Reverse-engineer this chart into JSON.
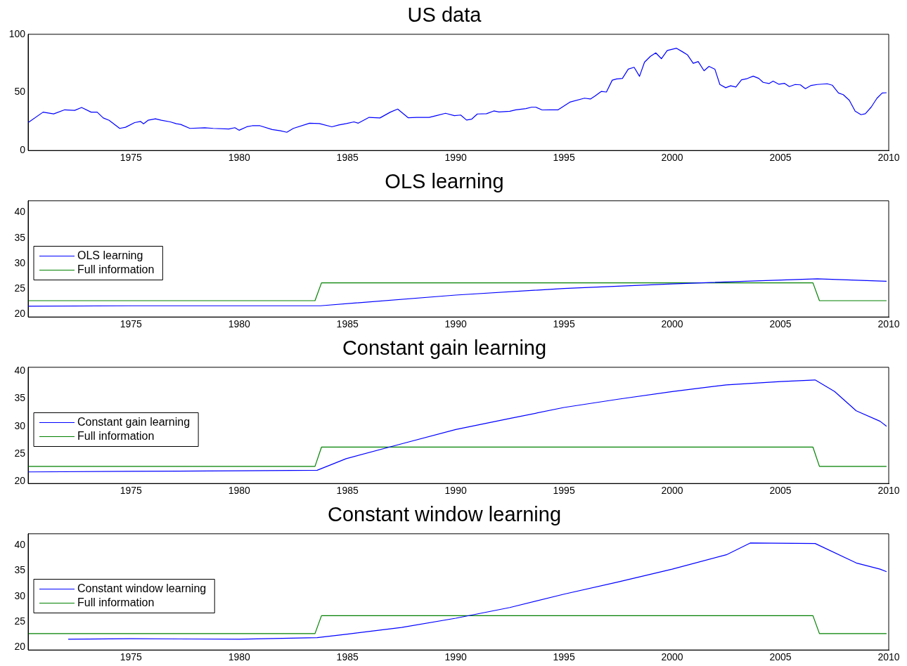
{
  "chart_data": [
    {
      "type": "line",
      "title": "US data",
      "xlim": [
        1970.25,
        2010
      ],
      "xticks": [
        1975,
        1980,
        1985,
        1990,
        1995,
        2000,
        2005,
        2010
      ],
      "ylim": [
        0,
        100
      ],
      "yticks": [
        0,
        50,
        100
      ],
      "grid": false,
      "legend": false,
      "series": [
        {
          "color": "#0000ff",
          "x": [
            1970.25,
            1970.94,
            1971.43,
            1971.94,
            1972.4,
            1972.72,
            1973.16,
            1973.44,
            1973.72,
            1973.99,
            1974.48,
            1974.75,
            1975.17,
            1975.44,
            1975.58,
            1975.79,
            1976.13,
            1976.4,
            1976.82,
            1977.1,
            1977.3,
            1977.72,
            1978.41,
            1978.8,
            1979.52,
            1979.8,
            1980,
            1980.35,
            1980.6,
            1980.96,
            1981.52,
            1981.9,
            1982.2,
            1982.5,
            1983.25,
            1983.7,
            1984.28,
            1984.6,
            1984.95,
            1985.3,
            1985.5,
            1986.0,
            1986.5,
            1986.98,
            1987.32,
            1987.8,
            1988.2,
            1988.77,
            1989.1,
            1989.53,
            1989.94,
            1990.23,
            1990.5,
            1990.74,
            1991.0,
            1991.42,
            1991.76,
            1992.0,
            1992.5,
            1992.77,
            1993.24,
            1993.51,
            1993.7,
            1993.99,
            1994.33,
            1994.73,
            1995.27,
            1995.95,
            1996.22,
            1996.42,
            1996.72,
            1996.96,
            1997.23,
            1997.43,
            1997.7,
            1997.97,
            1998.24,
            1998.49,
            1998.72,
            1998.99,
            1999.24,
            1999.5,
            1999.77,
            2000.2,
            2000.47,
            2000.7,
            2000.97,
            2001.2,
            2001.47,
            2001.7,
            2001.97,
            2002.2,
            2002.47,
            2002.7,
            2002.94,
            2003.2,
            2003.47,
            2003.74,
            2004.0,
            2004.2,
            2004.47,
            2004.66,
            2004.93,
            2005.18,
            2005.41,
            2005.68,
            2005.92,
            2006.15,
            2006.42,
            2006.7,
            2007.16,
            2007.39,
            2007.68,
            2007.9,
            2008.18,
            2008.45,
            2008.72,
            2008.92,
            2009.19,
            2009.46,
            2009.7,
            2009.9
          ],
          "values": [
            24,
            33,
            31.5,
            35,
            34.5,
            37,
            33,
            33,
            28,
            26,
            19,
            20,
            24,
            25,
            23,
            26,
            27.3,
            26,
            24.6,
            23,
            22.4,
            19,
            19.6,
            19,
            18.5,
            19.6,
            17.4,
            20.4,
            21.3,
            21.3,
            18,
            17,
            15.7,
            19,
            23.5,
            23.2,
            20.4,
            22,
            23.2,
            24.6,
            23.5,
            28.5,
            28,
            33,
            35.6,
            28.2,
            28.5,
            28.5,
            30,
            32,
            30,
            30.5,
            26.2,
            27,
            31.4,
            31.6,
            34,
            33.2,
            33.8,
            35,
            36,
            37.3,
            37.3,
            34.9,
            35,
            35,
            41.6,
            45,
            44.3,
            46.7,
            50.8,
            50.3,
            60.5,
            61.6,
            62,
            70,
            71.6,
            63.8,
            76,
            81,
            84,
            79,
            86,
            88,
            85,
            82.4,
            75,
            76.5,
            68.6,
            72.4,
            70,
            56.8,
            54,
            55.7,
            54.6,
            60.8,
            61.9,
            64,
            62,
            58.6,
            57.6,
            59.7,
            57,
            57.8,
            55,
            56.8,
            56.5,
            53.2,
            56,
            56.8,
            57.4,
            56.2,
            49.5,
            48,
            43.2,
            33.8,
            30.8,
            31.6,
            37.3,
            45,
            49.5,
            49.7
          ]
        }
      ]
    },
    {
      "type": "line",
      "title": "OLS learning",
      "xlim": [
        1970.25,
        2010
      ],
      "xticks": [
        1975,
        1980,
        1985,
        1990,
        1995,
        2000,
        2005,
        2010
      ],
      "ylim": [
        19.5,
        42.3
      ],
      "yticks": [
        20,
        25,
        30,
        35,
        40
      ],
      "grid": false,
      "legend": "left",
      "series": [
        {
          "name": "OLS learning",
          "color": "#0000ff",
          "x": [
            1970.25,
            1975,
            1980,
            1983.75,
            1990,
            1995,
            2000,
            2006.7,
            2009.9
          ],
          "values": [
            21.6,
            21.7,
            21.7,
            21.7,
            23.8,
            25.1,
            26.0,
            27.0,
            26.5
          ]
        },
        {
          "name": "Full information",
          "color": "#008000",
          "x": [
            1970.25,
            1983.5,
            1983.8,
            2006.5,
            2006.8,
            2009.9
          ],
          "values": [
            22.7,
            22.7,
            26.2,
            26.2,
            22.7,
            22.7
          ]
        }
      ]
    },
    {
      "type": "line",
      "title": "Constant gain learning",
      "xlim": [
        1970.25,
        2010
      ],
      "xticks": [
        1975,
        1980,
        1985,
        1990,
        1995,
        2000,
        2005,
        2010
      ],
      "ylim": [
        19.6,
        40.7
      ],
      "yticks": [
        20,
        25,
        30,
        35,
        40
      ],
      "grid": false,
      "legend": "left",
      "series": [
        {
          "name": "Constant gain learning",
          "color": "#0000ff",
          "x": [
            1970.25,
            1975,
            1980,
            1983.6,
            1984.94,
            1987.5,
            1990,
            1992.5,
            1995,
            1997.5,
            2000,
            2002.5,
            2005,
            2006.6,
            2007.5,
            2008.5,
            2009.6,
            2009.9
          ],
          "values": [
            21.7,
            21.8,
            21.9,
            22.0,
            24.1,
            26.8,
            29.4,
            31.4,
            33.4,
            34.9,
            36.3,
            37.5,
            38.1,
            38.4,
            36.3,
            32.8,
            30.9,
            30.0
          ]
        },
        {
          "name": "Full information",
          "color": "#008000",
          "x": [
            1970.25,
            1983.5,
            1983.8,
            2006.5,
            2006.8,
            2009.9
          ],
          "values": [
            22.7,
            22.7,
            26.2,
            26.2,
            22.7,
            22.7
          ]
        }
      ]
    },
    {
      "type": "line",
      "title": "Constant window learning",
      "xlim": [
        1970.25,
        2010
      ],
      "xticks": [
        1975,
        1980,
        1985,
        1990,
        1995,
        2000,
        2005,
        2010
      ],
      "ylim": [
        19.5,
        42.2
      ],
      "yticks": [
        20,
        25,
        30,
        35,
        40
      ],
      "grid": false,
      "legend": "left",
      "series": [
        {
          "name": "Constant window learning",
          "color": "#0000ff",
          "x": [
            1972.1,
            1975,
            1980,
            1983.6,
            1985,
            1987.5,
            1990,
            1992.5,
            1995,
            1997.5,
            2000,
            2002.5,
            2003.6,
            2006.6,
            2008.5,
            2009.6,
            2009.9
          ],
          "values": [
            21.6,
            21.7,
            21.6,
            21.9,
            22.6,
            23.9,
            25.7,
            27.8,
            30.4,
            32.8,
            35.3,
            38.1,
            40.4,
            40.3,
            36.5,
            35.3,
            34.8
          ]
        },
        {
          "name": "Full information",
          "color": "#008000",
          "x": [
            1970.25,
            1983.5,
            1983.8,
            2006.5,
            2006.8,
            2009.9
          ],
          "values": [
            22.7,
            22.7,
            26.2,
            26.2,
            22.7,
            22.7
          ]
        }
      ]
    }
  ]
}
